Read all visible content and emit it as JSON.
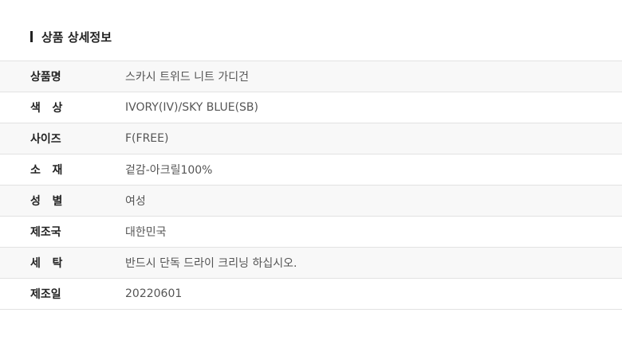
{
  "title": "상품 상세정보",
  "rows": [
    {
      "label": "상품명",
      "value": "스카시 트위드 니트 가디건"
    },
    {
      "label": "색   상",
      "value": "IVORY(IV)/SKY BLUE(SB)"
    },
    {
      "label": "사이즈",
      "value": "F(FREE)"
    },
    {
      "label": "소   재",
      "value": "겉감-아크릴100%"
    },
    {
      "label": "성   별",
      "value": "여성"
    },
    {
      "label": "제조국",
      "value": "대한민국"
    },
    {
      "label": "세   탁",
      "value": "반드시 단독 드라이 크리닝 하십시오."
    },
    {
      "label": "제조일",
      "value": "20220601"
    }
  ]
}
